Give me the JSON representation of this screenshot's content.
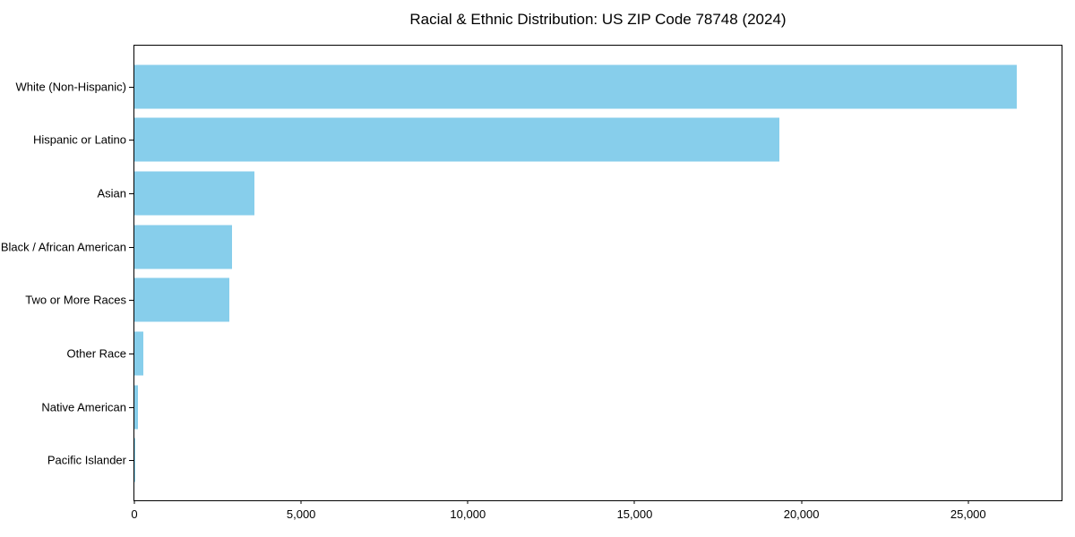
{
  "chart_data": {
    "type": "bar",
    "orientation": "horizontal",
    "title": "Racial & Ethnic Distribution: US ZIP Code 78748 (2024)",
    "categories": [
      "White (Non-Hispanic)",
      "Hispanic or Latino",
      "Asian",
      "Black / African American",
      "Two or More Races",
      "Other Race",
      "Native American",
      "Pacific Islander"
    ],
    "values": [
      26450,
      19350,
      3590,
      2920,
      2840,
      270,
      110,
      15
    ],
    "xlabel": "",
    "ylabel": "",
    "xlim": [
      0,
      27800
    ],
    "x_ticks": [
      0,
      5000,
      10000,
      15000,
      20000,
      25000
    ],
    "x_tick_labels": [
      "0",
      "5,000",
      "10,000",
      "15,000",
      "20,000",
      "25,000"
    ],
    "bar_color": "#87CEEB",
    "frame_color": "#000000",
    "background_color": "#ffffff",
    "grid": false,
    "legend": null
  }
}
